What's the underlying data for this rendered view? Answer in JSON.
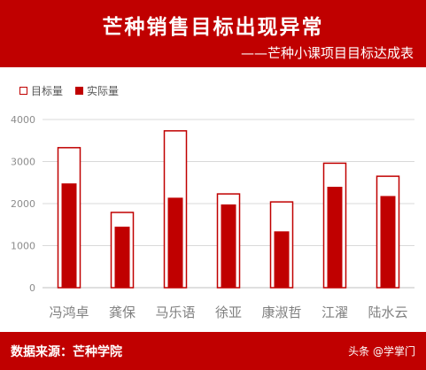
{
  "header": {
    "title": "芒种销售目标出现异常",
    "subtitle": "——芒种小课项目目标达成表"
  },
  "footer": {
    "source": "数据来源：芒种学院",
    "watermark": "头条 @学掌门"
  },
  "colors": {
    "accent": "#c00000",
    "grid": "#d9d9d9",
    "axis_text": "#8c8c8c",
    "category_text": "#7f7f7f"
  },
  "chart_data": {
    "type": "bar",
    "categories": [
      "冯鸿卓",
      "龚保",
      "马乐语",
      "徐亚",
      "康淑哲",
      "江濯",
      "陆水云"
    ],
    "series": [
      {
        "name": "目标量",
        "values": [
          3330,
          1790,
          3730,
          2230,
          2040,
          2960,
          2650
        ]
      },
      {
        "name": "实际量",
        "values": [
          2480,
          1450,
          2140,
          1980,
          1340,
          2400,
          2180
        ]
      }
    ],
    "ylim": [
      0,
      4000
    ],
    "yticks": [
      "0",
      "1000",
      "2000",
      "3000",
      "4000"
    ],
    "grid": true,
    "legend_position": "top-left",
    "xlabel": "",
    "ylabel": ""
  }
}
